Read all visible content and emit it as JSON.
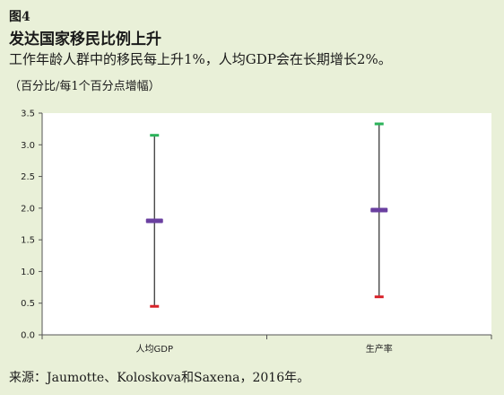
{
  "header": {
    "figure_label": "图4",
    "title": "发达国家移民比例上升",
    "subtitle": "工作年龄人群中的移民每上升1%，人均GDP会在长期增长2%。",
    "unit": "（百分比/每1个百分点增幅）"
  },
  "footer": {
    "source": "来源：Jaumotte、Koloskova和Saxena，2016年。"
  },
  "colors": {
    "background": "#e9f0d8",
    "plot_area": "#ffffff",
    "whisker": "#2a2a2a",
    "upper": "#2bb35a",
    "estimate": "#6a3fa0",
    "lower": "#d8232a"
  },
  "chart_data": {
    "type": "scatter",
    "categories": [
      "人均GDP",
      "生产率"
    ],
    "series": [
      {
        "values": [
          3.15,
          3.33
        ]
      },
      {
        "values": [
          1.8,
          1.97
        ]
      },
      {
        "values": [
          0.45,
          0.6
        ]
      }
    ],
    "ylim": [
      0,
      3.5
    ],
    "yticks": [
      "0.0",
      "0.5",
      "1.0",
      "1.5",
      "2.0",
      "2.5",
      "3.0",
      "3.5"
    ],
    "grid": false
  }
}
